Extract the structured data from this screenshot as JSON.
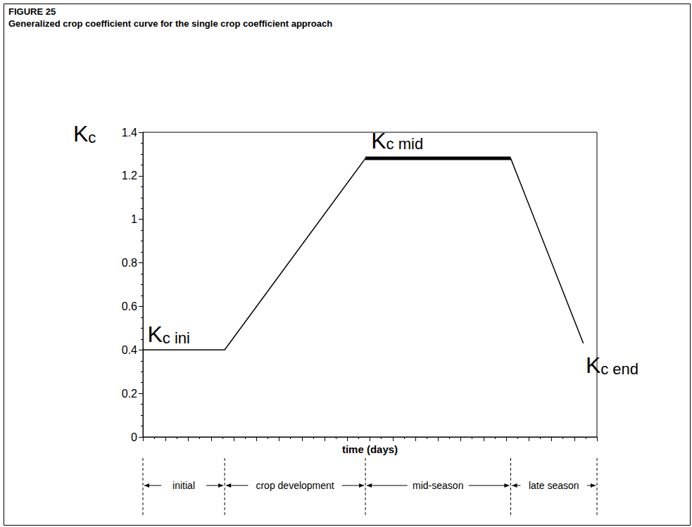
{
  "chart_data": {
    "type": "line",
    "title": "FIGURE 25",
    "subtitle": "Generalized crop coefficient curve for the single crop coefficient approach",
    "xlabel": "time (days)",
    "ylabel": {
      "main": "K",
      "sub": "c"
    },
    "xlim": [
      0,
      100
    ],
    "xticks": [
      0,
      5,
      10,
      15,
      20,
      25,
      30,
      35,
      40,
      45,
      50,
      55,
      60,
      65,
      70,
      75,
      80,
      85,
      90,
      95,
      100
    ],
    "ylim": [
      0,
      1.4
    ],
    "yticks": [
      0,
      0.2,
      0.4,
      0.6,
      0.8,
      1,
      1.2,
      1.4
    ],
    "grid": false,
    "tick_labels": "y",
    "series": [
      {
        "x": [
          0,
          18,
          49,
          81,
          97
        ],
        "values": [
          0.4,
          0.4,
          1.28,
          1.28,
          0.43
        ],
        "color": "#000000",
        "marker": "none",
        "line_style": "solid"
      },
      {
        "x": [
          49,
          81
        ],
        "values": [
          1.28,
          1.28
        ],
        "color": "#000000",
        "marker": "none",
        "line_style": "bold"
      }
    ],
    "annotations": [
      {
        "main": "K",
        "sub": "c ini",
        "x": 1,
        "y": 0.42
      },
      {
        "main": "K",
        "sub": "c mid",
        "x": 56,
        "y": 1.31
      },
      {
        "main": "K",
        "sub": "c end",
        "x": 97.5,
        "y": 0.4
      }
    ],
    "stages": [
      {
        "label": "initial",
        "start": 0,
        "end": 18
      },
      {
        "label": "crop development",
        "start": 18,
        "end": 49
      },
      {
        "label": "mid-season",
        "start": 49,
        "end": 81
      },
      {
        "label": "late season",
        "start": 81,
        "end": 100
      }
    ]
  }
}
